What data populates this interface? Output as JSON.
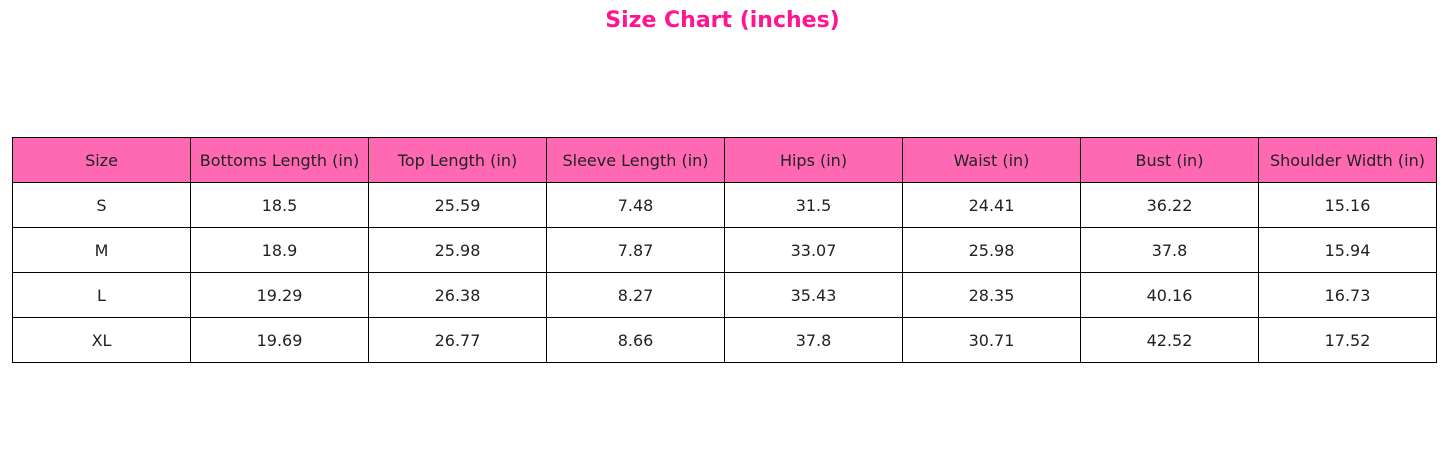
{
  "chart_data": {
    "type": "table",
    "title": "Size Chart (inches)",
    "header_color": "#ff69b4",
    "title_color": "#ff1493",
    "columns": [
      "Size",
      "Bottoms Length (in)",
      "Top Length (in)",
      "Sleeve Length (in)",
      "Hips (in)",
      "Waist (in)",
      "Bust (in)",
      "Shoulder Width (in)"
    ],
    "rows": [
      [
        "S",
        "18.5",
        "25.59",
        "7.48",
        "31.5",
        "24.41",
        "36.22",
        "15.16"
      ],
      [
        "M",
        "18.9",
        "25.98",
        "7.87",
        "33.07",
        "25.98",
        "37.8",
        "15.94"
      ],
      [
        "L",
        "19.29",
        "26.38",
        "8.27",
        "35.43",
        "28.35",
        "40.16",
        "16.73"
      ],
      [
        "XL",
        "19.69",
        "26.77",
        "8.66",
        "37.8",
        "30.71",
        "42.52",
        "17.52"
      ]
    ]
  }
}
